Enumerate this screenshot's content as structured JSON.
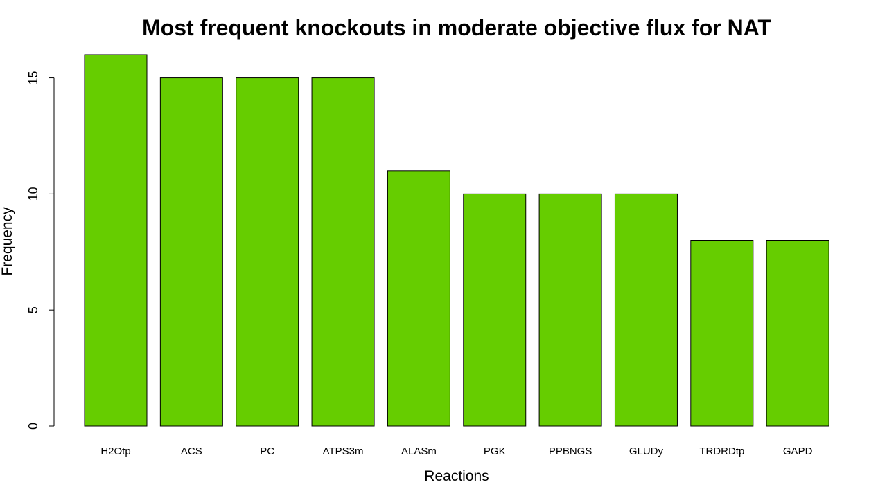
{
  "chart_data": {
    "type": "bar",
    "title": "Most frequent knockouts in moderate objective flux for NAT",
    "xlabel": "Reactions",
    "ylabel": "Frequency",
    "categories": [
      "H2Otp",
      "ACS",
      "PC",
      "ATPS3m",
      "ALASm",
      "PGK",
      "PPBNGS",
      "GLUDy",
      "TRDRDtp",
      "GAPD"
    ],
    "values": [
      16,
      15,
      15,
      15,
      11,
      10,
      10,
      10,
      8,
      8
    ],
    "yticks": [
      0,
      5,
      10,
      15
    ],
    "ylim": [
      0,
      16
    ],
    "bar_color": "#66CD00",
    "grid": false,
    "legend": false
  }
}
